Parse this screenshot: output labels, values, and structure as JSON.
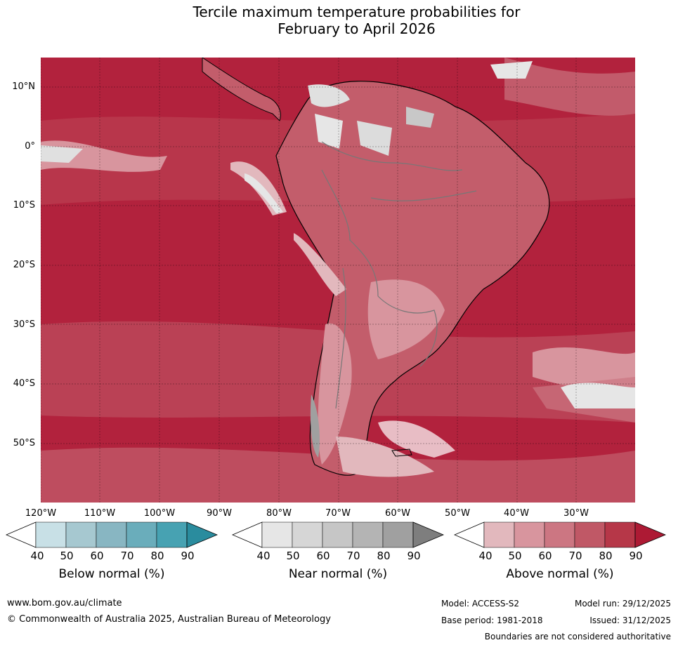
{
  "title": {
    "line1": "Tercile maximum temperature probabilities for",
    "line2": "February to April 2026"
  },
  "map": {
    "lat_labels": [
      "10°N",
      "0°",
      "10°S",
      "20°S",
      "30°S",
      "40°S",
      "50°S"
    ],
    "lon_labels": [
      "120°W",
      "110°W",
      "100°W",
      "90°W",
      "80°W",
      "70°W",
      "60°W",
      "50°W",
      "40°W",
      "30°W"
    ]
  },
  "colorbars": [
    {
      "label": "Below normal (%)",
      "ticks": [
        "40",
        "50",
        "60",
        "70",
        "80",
        "90"
      ],
      "colors": [
        "#ffffff",
        "#c8e0e6",
        "#a6c8d0",
        "#88b6c2",
        "#6aadbb",
        "#47a2b2",
        "#2a8c9e"
      ]
    },
    {
      "label": "Near normal (%)",
      "ticks": [
        "40",
        "50",
        "60",
        "70",
        "80",
        "90"
      ],
      "colors": [
        "#ffffff",
        "#e6e6e6",
        "#d6d6d6",
        "#c6c6c6",
        "#b4b4b4",
        "#a0a0a0",
        "#7e7e7e"
      ]
    },
    {
      "label": "Above normal (%)",
      "ticks": [
        "40",
        "50",
        "60",
        "70",
        "80",
        "90"
      ],
      "colors": [
        "#ffffff",
        "#e2b8bd",
        "#d8959e",
        "#cc7682",
        "#c05866",
        "#b63748",
        "#ad1a34"
      ]
    }
  ],
  "footer": {
    "url": "www.bom.gov.au/climate",
    "copyright": "© Commonwealth of Australia 2025, Australian Bureau of Meteorology",
    "model": "Model: ACCESS-S2",
    "model_run": "Model run: 29/12/2025",
    "base_period": "Base period: 1981-2018",
    "issued": "Issued: 31/12/2025",
    "disclaimer": "Boundaries are not considered authoritative"
  }
}
